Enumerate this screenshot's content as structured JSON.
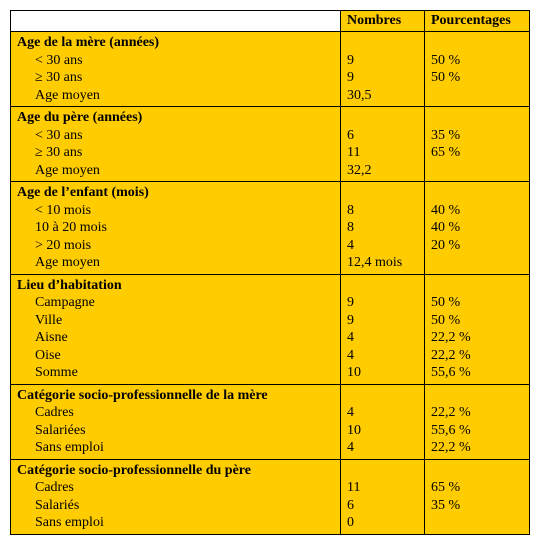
{
  "columns": {
    "nombres": "Nombres",
    "pourcentages": "Pourcentages"
  },
  "sections": [
    {
      "title": "Age de la mère (années)",
      "rows": [
        {
          "label": "< 30 ans",
          "num": "9",
          "pct": "50 %"
        },
        {
          "label": "≥ 30 ans",
          "num": "9",
          "pct": "50 %"
        },
        {
          "label": "Age moyen",
          "num": "30,5",
          "pct": ""
        }
      ]
    },
    {
      "title": "Age du père (années)",
      "rows": [
        {
          "label": "< 30 ans",
          "num": "6",
          "pct": "35 %"
        },
        {
          "label": "≥ 30 ans",
          "num": "11",
          "pct": "65 %"
        },
        {
          "label": "Age moyen",
          "num": "32,2",
          "pct": ""
        }
      ]
    },
    {
      "title": "Age de l’enfant (mois)",
      "rows": [
        {
          "label": "< 10 mois",
          "num": "8",
          "pct": "40 %"
        },
        {
          "label": "10 à 20 mois",
          "num": "8",
          "pct": "40 %"
        },
        {
          "label": "> 20 mois",
          "num": "4",
          "pct": "20 %"
        },
        {
          "label": "Age moyen",
          "num": "12,4 mois",
          "pct": ""
        }
      ]
    },
    {
      "title": "Lieu d’habitation",
      "rows": [
        {
          "label": "Campagne",
          "num": "9",
          "pct": "50 %"
        },
        {
          "label": "Ville",
          "num": "9",
          "pct": "50 %"
        },
        {
          "label": "Aisne",
          "num": "4",
          "pct": "22,2 %"
        },
        {
          "label": "Oise",
          "num": "4",
          "pct": "22,2 %"
        },
        {
          "label": "Somme",
          "num": "10",
          "pct": "55,6 %"
        }
      ]
    },
    {
      "title": "Catégorie socio-professionnelle de la mère",
      "rows": [
        {
          "label": "Cadres",
          "num": "4",
          "pct": "22,2 %"
        },
        {
          "label": "Salariées",
          "num": "10",
          "pct": "55,6 %"
        },
        {
          "label": "Sans emploi",
          "num": "4",
          "pct": "22,2 %"
        }
      ]
    },
    {
      "title": "Catégorie socio-professionnelle du père",
      "rows": [
        {
          "label": "Cadres",
          "num": "11",
          "pct": "65 %"
        },
        {
          "label": "Salariés",
          "num": "6",
          "pct": "35 %"
        },
        {
          "label": "Sans emploi",
          "num": "0",
          "pct": ""
        }
      ]
    }
  ],
  "style": {
    "header_bg": "#ffcc00",
    "body_bg": "#ffcc00",
    "border_color": "#000000",
    "font_family": "Times New Roman"
  }
}
